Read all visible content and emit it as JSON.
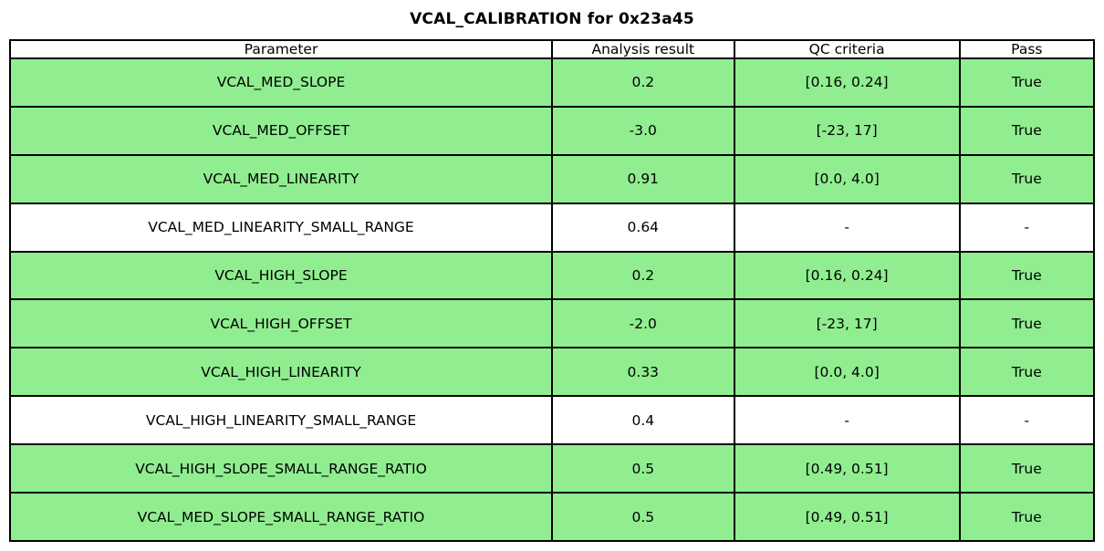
{
  "title": "VCAL_CALIBRATION for 0x23a45",
  "colors": {
    "pass_row_green": "#90ee90",
    "neutral_row_white": "#ffffff",
    "border_black": "#000000",
    "text_black": "#000000"
  },
  "chart_data": {
    "type": "table",
    "title": "VCAL_CALIBRATION for 0x23a45",
    "columns": [
      "Parameter",
      "Analysis result",
      "QC criteria",
      "Pass"
    ],
    "rows": [
      {
        "parameter": "VCAL_MED_SLOPE",
        "analysis_result": "0.2",
        "qc_criteria": "[0.16, 0.24]",
        "pass": "True"
      },
      {
        "parameter": "VCAL_MED_OFFSET",
        "analysis_result": "-3.0",
        "qc_criteria": "[-23, 17]",
        "pass": "True"
      },
      {
        "parameter": "VCAL_MED_LINEARITY",
        "analysis_result": "0.91",
        "qc_criteria": "[0.0, 4.0]",
        "pass": "True"
      },
      {
        "parameter": "VCAL_MED_LINEARITY_SMALL_RANGE",
        "analysis_result": "0.64",
        "qc_criteria": "-",
        "pass": "-"
      },
      {
        "parameter": "VCAL_HIGH_SLOPE",
        "analysis_result": "0.2",
        "qc_criteria": "[0.16, 0.24]",
        "pass": "True"
      },
      {
        "parameter": "VCAL_HIGH_OFFSET",
        "analysis_result": "-2.0",
        "qc_criteria": "[-23, 17]",
        "pass": "True"
      },
      {
        "parameter": "VCAL_HIGH_LINEARITY",
        "analysis_result": "0.33",
        "qc_criteria": "[0.0, 4.0]",
        "pass": "True"
      },
      {
        "parameter": "VCAL_HIGH_LINEARITY_SMALL_RANGE",
        "analysis_result": "0.4",
        "qc_criteria": "-",
        "pass": "-"
      },
      {
        "parameter": "VCAL_HIGH_SLOPE_SMALL_RANGE_RATIO",
        "analysis_result": "0.5",
        "qc_criteria": "[0.49, 0.51]",
        "pass": "True"
      },
      {
        "parameter": "VCAL_MED_SLOPE_SMALL_RANGE_RATIO",
        "analysis_result": "0.5",
        "qc_criteria": "[0.49, 0.51]",
        "pass": "True"
      }
    ],
    "layout": {
      "header_background": "#ffffff",
      "pass_true_row_background": "#90ee90",
      "no_criteria_row_background": "#ffffff",
      "grid": true
    }
  }
}
